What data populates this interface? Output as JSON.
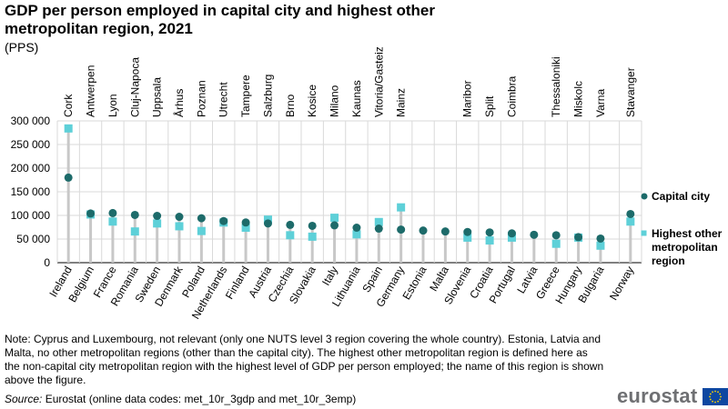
{
  "title": "GDP per person employed in capital city and highest other metropolitan region, 2021",
  "subtitle": "(PPS)",
  "notes": "Note: Cyprus and Luxembourg, not relevant (only one NUTS level 3 region covering the whole country). Estonia, Latvia and Malta, no other metropolitan regions (other than the capital city). The highest other metropolitan region is defined here as the non-capital city metropolitan region with the highest level of GDP per person employed; the name of this region is shown above the figure.",
  "source_label": "Source:",
  "source_text": " Eurostat (online data codes: met_10r_3gdp and met_10r_3emp)",
  "logo_text": "eurostat",
  "colors": {
    "capital": "#1d6b6a",
    "other": "#5ed0d8",
    "grid": "#d9d9d9",
    "stem": "#c8c8c8"
  },
  "chart_data": {
    "type": "scatter",
    "title": "GDP per person employed in capital city and highest other metropolitan region, 2021",
    "unit": "PPS",
    "ylim": [
      0,
      300000
    ],
    "yticks": [
      0,
      50000,
      100000,
      150000,
      200000,
      250000,
      300000
    ],
    "ytick_labels": [
      "0",
      "50 000",
      "100 000",
      "150 000",
      "200 000",
      "250 000",
      "300 000"
    ],
    "grid": true,
    "legend_position": "right",
    "categories": [
      "Ireland",
      "Belgium",
      "France",
      "Romania",
      "Sweden",
      "Denmark",
      "Poland",
      "Netherlands",
      "Finland",
      "Austria",
      "Czechia",
      "Slovakia",
      "Italy",
      "Lithuania",
      "Spain",
      "Germany",
      "Estonia",
      "Malta",
      "Slovenia",
      "Croatia",
      "Portugal",
      "Latvia",
      "Greece",
      "Hungary",
      "Bulgaria",
      "Norway"
    ],
    "region_labels": [
      "Cork",
      "Antwerpen",
      "Lyon",
      "Cluj-Napoca",
      "Uppsala",
      "Århus",
      "Poznan",
      "Utrecht",
      "Tampere",
      "Salzburg",
      "Brno",
      "Kosice",
      "Milano",
      "Kaunas",
      "Vitoria/Gasteiz",
      "Mainz",
      "",
      "",
      "Maribor",
      "Split",
      "Coimbra",
      "",
      "Thessaloniki",
      "Miskolc",
      "Varna",
      "Stavanger"
    ],
    "series": [
      {
        "name": "Capital city",
        "marker": "circle",
        "values": [
          180000,
          104000,
          105000,
          101000,
          99000,
          97000,
          94000,
          88000,
          85000,
          83000,
          80000,
          78000,
          79000,
          74000,
          72000,
          70000,
          68000,
          66000,
          65000,
          64000,
          62000,
          59000,
          58000,
          54000,
          51000,
          103000
        ]
      },
      {
        "name": "Highest other metropolitan region",
        "marker": "square",
        "values": [
          284000,
          102000,
          87000,
          66000,
          83000,
          77000,
          67000,
          85000,
          74000,
          91000,
          58000,
          55000,
          95000,
          60000,
          86000,
          117000,
          null,
          null,
          53000,
          47000,
          53000,
          null,
          40000,
          53000,
          36000,
          87000
        ]
      }
    ]
  }
}
